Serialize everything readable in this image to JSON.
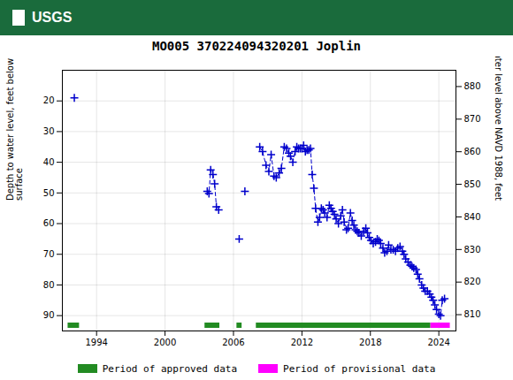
{
  "chart_data": {
    "type": "line",
    "title": "MO005 370224094320201 Joplin",
    "annotations": [
      "USGS"
    ],
    "ylabel": "Depth to water level, feet below land\nsurface",
    "y2label": "Groundwater level above NAVD 1988, feet",
    "x": [
      1992.05,
      null,
      2003.7,
      2003.85,
      2004.0,
      2004.2,
      2004.35,
      2004.5,
      2004.7,
      null,
      2006.5,
      null,
      2007.0,
      null,
      2008.3,
      2008.55,
      2008.85,
      2009.1,
      2009.3,
      2009.55,
      2009.75,
      2010.0,
      2010.2,
      2010.45,
      2010.65,
      2010.85,
      2011.0,
      2011.2,
      2011.4,
      2011.55,
      2011.7,
      2011.85,
      2012.0,
      2012.15,
      2012.3,
      2012.45,
      2012.6,
      2012.75,
      2012.9,
      2013.05,
      2013.2,
      2013.4,
      2013.55,
      2013.7,
      2013.85,
      2014.0,
      2014.2,
      2014.4,
      2014.55,
      2014.7,
      2014.85,
      2015.0,
      2015.2,
      2015.4,
      2015.55,
      2015.7,
      2015.9,
      2016.05,
      2016.25,
      2016.4,
      2016.55,
      2016.7,
      2016.85,
      2017.0,
      2017.2,
      2017.4,
      2017.6,
      2017.75,
      2017.9,
      2018.05,
      2018.25,
      2018.45,
      2018.6,
      2018.75,
      2018.9,
      2019.1,
      2019.25,
      2019.45,
      2019.6,
      2019.8,
      2020.0,
      2020.2,
      2020.4,
      2020.6,
      2020.8,
      2020.95,
      2021.1,
      2021.3,
      2021.5,
      2021.65,
      2021.8,
      2022.0,
      2022.15,
      2022.3,
      2022.5,
      2022.65,
      2022.8,
      2023.0,
      2023.2,
      2023.35,
      2023.5,
      2023.65,
      2023.8,
      2024.0,
      2024.15,
      2024.3,
      2024.5
    ],
    "values": [
      19.0,
      null,
      49.5,
      50.2,
      42.5,
      44.0,
      47.0,
      54.5,
      55.5,
      null,
      65.0,
      null,
      49.5,
      null,
      35.0,
      36.5,
      41.0,
      43.0,
      37.5,
      44.5,
      45.0,
      43.5,
      42.0,
      35.0,
      35.5,
      37.0,
      38.0,
      40.0,
      36.5,
      35.0,
      35.5,
      35.5,
      35.5,
      34.5,
      36.5,
      36.0,
      36.0,
      35.5,
      44.0,
      48.5,
      55.0,
      59.5,
      58.0,
      55.0,
      55.5,
      56.5,
      58.0,
      54.0,
      55.0,
      56.0,
      57.0,
      58.5,
      60.0,
      57.5,
      55.5,
      59.5,
      62.0,
      61.5,
      56.5,
      59.0,
      60.5,
      62.0,
      62.5,
      63.0,
      64.0,
      62.5,
      61.5,
      63.0,
      64.5,
      65.5,
      66.5,
      66.0,
      65.0,
      65.5,
      66.5,
      68.0,
      69.5,
      69.0,
      67.0,
      68.5,
      68.5,
      69.0,
      68.0,
      67.5,
      69.0,
      70.0,
      71.5,
      72.5,
      73.5,
      74.0,
      74.5,
      75.0,
      76.5,
      78.0,
      80.0,
      81.0,
      82.0,
      82.0,
      83.0,
      84.0,
      85.0,
      86.5,
      88.0,
      89.5,
      90.0,
      85.0,
      84.5
    ],
    "color": "#0000cc",
    "marker": "plus",
    "line_style": "dashed",
    "xlim": [
      1991.0,
      2025.5
    ],
    "xticks": [
      1994,
      2000,
      2006,
      2012,
      2018,
      2024
    ],
    "ylim": [
      95,
      10
    ],
    "yticks": [
      20,
      30,
      40,
      50,
      60,
      70,
      80,
      90
    ],
    "y2lim": [
      805,
      885
    ],
    "y2ticks": [
      880,
      870,
      860,
      850,
      840,
      830,
      820,
      810
    ],
    "periods": [
      {
        "name": "Period of approved data",
        "color": "#228B22",
        "ranges": [
          [
            1991.5,
            1992.5
          ],
          [
            2003.5,
            2004.8
          ],
          [
            2006.3,
            2006.75
          ],
          [
            2008.0,
            2023.3
          ]
        ]
      },
      {
        "name": "Period of provisional data",
        "color": "#ff00ff",
        "ranges": [
          [
            2023.3,
            2025.0
          ]
        ]
      }
    ],
    "grid": true,
    "legend": "bottom"
  }
}
